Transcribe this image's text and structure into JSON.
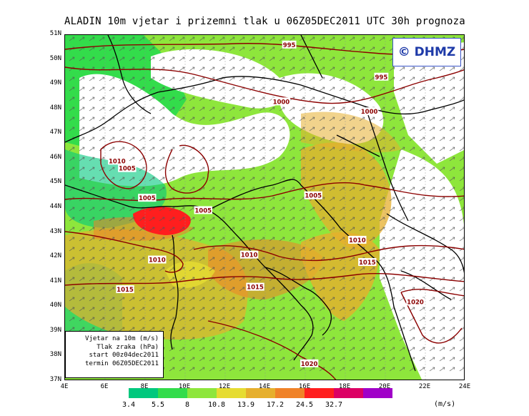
{
  "title": "ALADIN 10m vjetar i prizemni tlak u 06Z05DEC2011 UTC 30h prognoza",
  "logo": "© DHMZ",
  "lat_labels": [
    "51N",
    "50N",
    "49N",
    "48N",
    "47N",
    "46N",
    "45N",
    "44N",
    "43N",
    "42N",
    "41N",
    "40N",
    "39N",
    "38N",
    "37N"
  ],
  "lon_labels": [
    "4E",
    "6E",
    "8E",
    "10E",
    "12E",
    "14E",
    "16E",
    "18E",
    "20E",
    "22E",
    "24E"
  ],
  "legend": {
    "line1": "Vjetar na 10m (m/s)",
    "line2": "Tlak zraka (hPa)",
    "line3": "start 00z04dec2011",
    "line4": "termin 06Z05DEC2011"
  },
  "colorbar": {
    "colors": [
      "#00c87d",
      "#33dc4b",
      "#8ee63c",
      "#e6dc32",
      "#e6af2d",
      "#f08228",
      "#ff1e1e",
      "#dc0064",
      "#a000c8"
    ],
    "labels": [
      "3.4",
      "5.5",
      "8",
      "10.8",
      "13.9",
      "17.2",
      "24.5",
      "32.7"
    ],
    "unit": "(m/s)"
  },
  "isobars": [
    {
      "label": "995",
      "lon": 15.2,
      "lat": 50.6
    },
    {
      "label": "995",
      "lon": 19.8,
      "lat": 49.3
    },
    {
      "label": "1000",
      "lon": 14.8,
      "lat": 48.3
    },
    {
      "label": "1000",
      "lon": 19.2,
      "lat": 47.9
    },
    {
      "label": "1010",
      "lon": 6.6,
      "lat": 45.9
    },
    {
      "label": "1005",
      "lon": 7.1,
      "lat": 45.6
    },
    {
      "label": "1005",
      "lon": 8.1,
      "lat": 44.4
    },
    {
      "label": "1005",
      "lon": 10.9,
      "lat": 43.9
    },
    {
      "label": "1005",
      "lon": 16.4,
      "lat": 44.5
    },
    {
      "label": "1010",
      "lon": 8.6,
      "lat": 41.9
    },
    {
      "label": "1010",
      "lon": 13.2,
      "lat": 42.1
    },
    {
      "label": "1010",
      "lon": 18.6,
      "lat": 42.7
    },
    {
      "label": "1015",
      "lon": 7.0,
      "lat": 40.7
    },
    {
      "label": "1015",
      "lon": 13.5,
      "lat": 40.8
    },
    {
      "label": "1015",
      "lon": 19.1,
      "lat": 41.8
    },
    {
      "label": "1020",
      "lon": 21.5,
      "lat": 40.2
    },
    {
      "label": "1020",
      "lon": 16.2,
      "lat": 37.7
    }
  ]
}
